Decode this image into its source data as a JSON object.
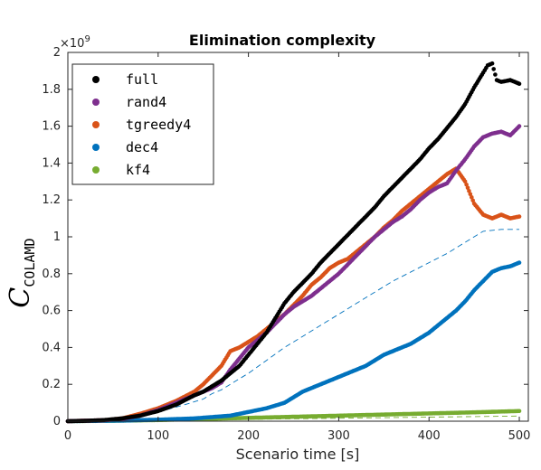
{
  "chart_data": {
    "type": "scatter",
    "title": "Elimination complexity",
    "xlabel": "Scenario time [s]",
    "ylabel_main": "C",
    "ylabel_sub": "COLAMD",
    "y_multiplier": "×10",
    "y_multiplier_exp": "9",
    "xlim": [
      0,
      510
    ],
    "ylim": [
      0,
      2
    ],
    "xticks": [
      "0",
      "100",
      "200",
      "300",
      "400",
      "500"
    ],
    "yticks": [
      "0",
      "0.2",
      "0.4",
      "0.6",
      "0.8",
      "1",
      "1.2",
      "1.4",
      "1.6",
      "1.8",
      "2"
    ],
    "grid": false,
    "legend_position": "top-left",
    "series": [
      {
        "name": "full",
        "color": "#000000",
        "points": [
          [
            0,
            0
          ],
          [
            20,
            0.002
          ],
          [
            40,
            0.006
          ],
          [
            60,
            0.015
          ],
          [
            80,
            0.03
          ],
          [
            100,
            0.055
          ],
          [
            120,
            0.09
          ],
          [
            140,
            0.14
          ],
          [
            150,
            0.16
          ],
          [
            160,
            0.19
          ],
          [
            170,
            0.22
          ],
          [
            180,
            0.26
          ],
          [
            190,
            0.3
          ],
          [
            200,
            0.36
          ],
          [
            210,
            0.42
          ],
          [
            220,
            0.48
          ],
          [
            230,
            0.56
          ],
          [
            240,
            0.64
          ],
          [
            250,
            0.7
          ],
          [
            260,
            0.75
          ],
          [
            270,
            0.8
          ],
          [
            280,
            0.86
          ],
          [
            290,
            0.91
          ],
          [
            300,
            0.96
          ],
          [
            310,
            1.01
          ],
          [
            320,
            1.06
          ],
          [
            330,
            1.11
          ],
          [
            340,
            1.16
          ],
          [
            350,
            1.22
          ],
          [
            360,
            1.27
          ],
          [
            370,
            1.32
          ],
          [
            380,
            1.37
          ],
          [
            390,
            1.42
          ],
          [
            400,
            1.48
          ],
          [
            410,
            1.53
          ],
          [
            420,
            1.59
          ],
          [
            430,
            1.65
          ],
          [
            440,
            1.72
          ],
          [
            450,
            1.81
          ],
          [
            460,
            1.89
          ],
          [
            465,
            1.93
          ],
          [
            470,
            1.94
          ],
          [
            475,
            1.85
          ],
          [
            480,
            1.84
          ],
          [
            490,
            1.85
          ],
          [
            500,
            1.83
          ]
        ]
      },
      {
        "name": "rand4",
        "color": "#7E2F8E",
        "points": [
          [
            0,
            0
          ],
          [
            40,
            0.005
          ],
          [
            60,
            0.012
          ],
          [
            80,
            0.03
          ],
          [
            100,
            0.06
          ],
          [
            120,
            0.1
          ],
          [
            140,
            0.14
          ],
          [
            160,
            0.18
          ],
          [
            170,
            0.21
          ],
          [
            180,
            0.28
          ],
          [
            190,
            0.34
          ],
          [
            200,
            0.4
          ],
          [
            210,
            0.44
          ],
          [
            220,
            0.48
          ],
          [
            230,
            0.53
          ],
          [
            240,
            0.58
          ],
          [
            250,
            0.62
          ],
          [
            260,
            0.65
          ],
          [
            270,
            0.68
          ],
          [
            280,
            0.72
          ],
          [
            290,
            0.76
          ],
          [
            300,
            0.8
          ],
          [
            310,
            0.85
          ],
          [
            320,
            0.9
          ],
          [
            330,
            0.95
          ],
          [
            340,
            1.0
          ],
          [
            350,
            1.04
          ],
          [
            360,
            1.08
          ],
          [
            370,
            1.11
          ],
          [
            380,
            1.15
          ],
          [
            390,
            1.2
          ],
          [
            400,
            1.24
          ],
          [
            410,
            1.27
          ],
          [
            420,
            1.29
          ],
          [
            430,
            1.36
          ],
          [
            440,
            1.42
          ],
          [
            450,
            1.49
          ],
          [
            460,
            1.54
          ],
          [
            470,
            1.56
          ],
          [
            480,
            1.57
          ],
          [
            490,
            1.55
          ],
          [
            500,
            1.6
          ]
        ]
      },
      {
        "name": "tgreedy4",
        "color": "#D95319",
        "points": [
          [
            0,
            0
          ],
          [
            40,
            0.005
          ],
          [
            60,
            0.015
          ],
          [
            80,
            0.04
          ],
          [
            100,
            0.07
          ],
          [
            120,
            0.11
          ],
          [
            140,
            0.16
          ],
          [
            150,
            0.2
          ],
          [
            160,
            0.25
          ],
          [
            170,
            0.3
          ],
          [
            180,
            0.38
          ],
          [
            190,
            0.4
          ],
          [
            200,
            0.43
          ],
          [
            210,
            0.46
          ],
          [
            220,
            0.5
          ],
          [
            230,
            0.54
          ],
          [
            240,
            0.58
          ],
          [
            250,
            0.63
          ],
          [
            260,
            0.68
          ],
          [
            270,
            0.74
          ],
          [
            280,
            0.78
          ],
          [
            290,
            0.83
          ],
          [
            300,
            0.86
          ],
          [
            310,
            0.88
          ],
          [
            320,
            0.92
          ],
          [
            330,
            0.96
          ],
          [
            340,
            1.0
          ],
          [
            350,
            1.05
          ],
          [
            360,
            1.09
          ],
          [
            370,
            1.14
          ],
          [
            380,
            1.18
          ],
          [
            390,
            1.22
          ],
          [
            400,
            1.26
          ],
          [
            410,
            1.3
          ],
          [
            420,
            1.34
          ],
          [
            430,
            1.37
          ],
          [
            440,
            1.3
          ],
          [
            450,
            1.18
          ],
          [
            460,
            1.12
          ],
          [
            470,
            1.1
          ],
          [
            480,
            1.12
          ],
          [
            490,
            1.1
          ],
          [
            500,
            1.11
          ]
        ]
      },
      {
        "name": "dec4",
        "color": "#0072BD",
        "points": [
          [
            0,
            0
          ],
          [
            60,
            0.003
          ],
          [
            100,
            0.008
          ],
          [
            140,
            0.015
          ],
          [
            180,
            0.03
          ],
          [
            200,
            0.05
          ],
          [
            220,
            0.07
          ],
          [
            240,
            0.1
          ],
          [
            250,
            0.13
          ],
          [
            260,
            0.16
          ],
          [
            270,
            0.18
          ],
          [
            280,
            0.2
          ],
          [
            290,
            0.22
          ],
          [
            300,
            0.24
          ],
          [
            310,
            0.26
          ],
          [
            320,
            0.28
          ],
          [
            330,
            0.3
          ],
          [
            340,
            0.33
          ],
          [
            350,
            0.36
          ],
          [
            360,
            0.38
          ],
          [
            370,
            0.4
          ],
          [
            380,
            0.42
          ],
          [
            390,
            0.45
          ],
          [
            400,
            0.48
          ],
          [
            410,
            0.52
          ],
          [
            420,
            0.56
          ],
          [
            430,
            0.6
          ],
          [
            440,
            0.65
          ],
          [
            450,
            0.71
          ],
          [
            460,
            0.76
          ],
          [
            470,
            0.81
          ],
          [
            480,
            0.83
          ],
          [
            490,
            0.84
          ],
          [
            500,
            0.86
          ]
        ]
      },
      {
        "name": "kf4",
        "color": "#77AC30",
        "points": [
          [
            0,
            0
          ],
          [
            50,
            0.002
          ],
          [
            100,
            0.006
          ],
          [
            150,
            0.012
          ],
          [
            200,
            0.018
          ],
          [
            250,
            0.024
          ],
          [
            300,
            0.03
          ],
          [
            350,
            0.036
          ],
          [
            400,
            0.042
          ],
          [
            450,
            0.048
          ],
          [
            500,
            0.055
          ]
        ]
      }
    ],
    "dashed_lines": [
      {
        "color": "#0072BD",
        "points": [
          [
            100,
            0.05
          ],
          [
            130,
            0.09
          ],
          [
            150,
            0.12
          ],
          [
            160,
            0.15
          ],
          [
            170,
            0.17
          ],
          [
            180,
            0.2
          ],
          [
            200,
            0.26
          ],
          [
            220,
            0.33
          ],
          [
            240,
            0.4
          ],
          [
            260,
            0.46
          ],
          [
            280,
            0.52
          ],
          [
            300,
            0.58
          ],
          [
            320,
            0.64
          ],
          [
            340,
            0.7
          ],
          [
            360,
            0.76
          ],
          [
            380,
            0.81
          ],
          [
            400,
            0.86
          ],
          [
            420,
            0.91
          ],
          [
            440,
            0.97
          ],
          [
            460,
            1.03
          ],
          [
            480,
            1.04
          ],
          [
            500,
            1.04
          ]
        ]
      },
      {
        "color": "#77AC30",
        "points": [
          [
            0,
            0
          ],
          [
            100,
            0.004
          ],
          [
            200,
            0.01
          ],
          [
            300,
            0.016
          ],
          [
            400,
            0.022
          ],
          [
            500,
            0.028
          ]
        ]
      }
    ]
  }
}
